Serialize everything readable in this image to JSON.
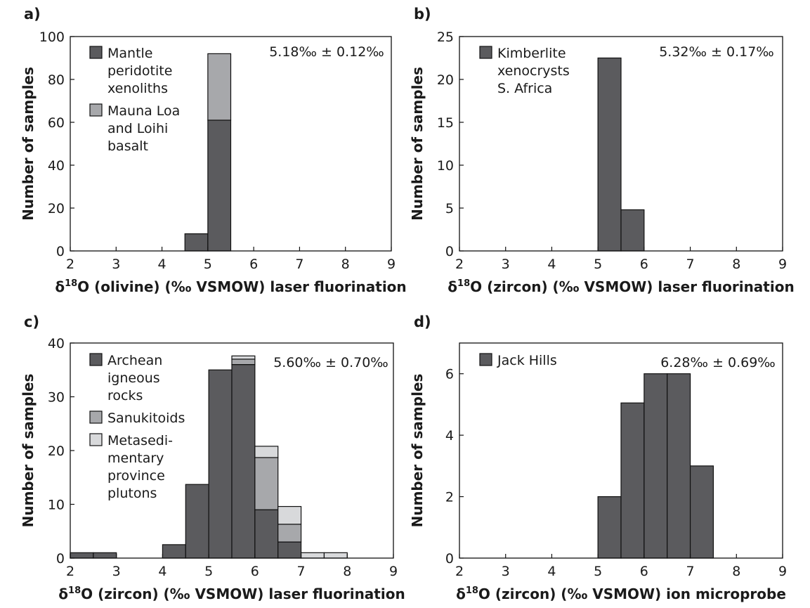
{
  "chart_data": [
    {
      "type": "bar",
      "stacked": true,
      "panel_label": "a)",
      "annotation": "5.18‰ ± 0.12‰",
      "xlabel_main": "O (olivine) (‰ VSMOW) laser fluorination",
      "ylabel": "Number of samples",
      "xlim": [
        2,
        9
      ],
      "ylim": [
        0,
        100
      ],
      "xticks": [
        "2",
        "3",
        "4",
        "5",
        "6",
        "7",
        "8",
        "9"
      ],
      "yticks": [
        "0",
        "20",
        "40",
        "60",
        "80",
        "100"
      ],
      "bin_width": 0.5,
      "bins": [
        4.5,
        5.0
      ],
      "series": [
        {
          "name": [
            "Mantle",
            "peridotite",
            "xenoliths"
          ],
          "color": "#5b5b5e",
          "values": [
            8,
            61
          ]
        },
        {
          "name": [
            "Mauna Loa",
            "and Loihi",
            "basalt"
          ],
          "color": "#a7a8ab",
          "values": [
            0,
            31
          ]
        }
      ]
    },
    {
      "type": "bar",
      "stacked": true,
      "panel_label": "b)",
      "annotation": "5.32‰ ± 0.17‰",
      "xlabel_main": "O (zircon) (‰ VSMOW) laser fluorination",
      "ylabel": "Number of samples",
      "xlim": [
        2,
        9
      ],
      "ylim": [
        0,
        25
      ],
      "xticks": [
        "2",
        "3",
        "4",
        "5",
        "6",
        "7",
        "8",
        "9"
      ],
      "yticks": [
        "0",
        "5",
        "10",
        "15",
        "20",
        "25"
      ],
      "bin_width": 0.5,
      "bins": [
        5.0,
        5.5
      ],
      "series": [
        {
          "name": [
            "Kimberlite",
            "xenocrysts",
            "S. Africa"
          ],
          "color": "#5b5b5e",
          "values": [
            22.5,
            4.8
          ]
        }
      ]
    },
    {
      "type": "bar",
      "stacked": true,
      "panel_label": "c)",
      "annotation": "5.60‰ ± 0.70‰",
      "xlabel_main": "O (zircon) (‰ VSMOW) laser fluorination",
      "ylabel": "Number of samples",
      "xlim": [
        2,
        9
      ],
      "ylim": [
        0,
        40
      ],
      "xticks": [
        "2",
        "3",
        "4",
        "5",
        "6",
        "7",
        "8",
        "9"
      ],
      "yticks": [
        "0",
        "10",
        "20",
        "30",
        "40"
      ],
      "bin_width": 0.5,
      "bins": [
        2.0,
        2.5,
        4.0,
        4.5,
        5.0,
        5.5,
        6.0,
        6.5,
        7.0,
        7.5
      ],
      "series": [
        {
          "name": [
            "Archean",
            "igneous",
            "rocks"
          ],
          "color": "#5b5b5e",
          "values": [
            1,
            1,
            2.5,
            13.7,
            35,
            36,
            9,
            3,
            0,
            0
          ]
        },
        {
          "name": [
            "Sanukitoids"
          ],
          "color": "#a7a8ab",
          "values": [
            0,
            0,
            0,
            0,
            0,
            1,
            9.7,
            3.3,
            0,
            0
          ]
        },
        {
          "name": [
            "Metasedi-",
            "mentary",
            "province",
            "plutons"
          ],
          "color": "#d8d9db",
          "values": [
            0,
            0,
            0,
            0,
            0,
            0.6,
            2.1,
            3.3,
            1,
            1
          ]
        }
      ],
      "extra_segments": [
        {
          "bin": 5.5,
          "color": "#a7a8ab",
          "base": 36.6,
          "value": 1
        },
        {
          "bin": 6.0,
          "color": "#a7a8ab",
          "base": 11.1,
          "value": 9.7
        },
        {
          "bin": 6.5,
          "color": "#a7a8ab",
          "base": 6.3,
          "value": 3.3
        }
      ]
    },
    {
      "type": "bar",
      "stacked": true,
      "panel_label": "d)",
      "annotation": "6.28‰ ± 0.69‰",
      "xlabel_main": "O (zircon) (‰ VSMOW) ion microprobe",
      "ylabel": "Number of samples",
      "xlim": [
        2,
        9
      ],
      "ylim": [
        0,
        7
      ],
      "xticks": [
        "2",
        "3",
        "4",
        "5",
        "6",
        "7",
        "8",
        "9"
      ],
      "yticks": [
        "0",
        "2",
        "4",
        "6"
      ],
      "bin_width": 0.5,
      "bins": [
        5.0,
        5.5,
        6.0,
        6.5,
        7.0
      ],
      "series": [
        {
          "name": [
            "Jack Hills"
          ],
          "color": "#5b5b5e",
          "values": [
            2,
            5.05,
            6,
            6,
            3
          ]
        }
      ]
    }
  ],
  "xlabel_prefix": "δ",
  "xlabel_superscript": "18"
}
